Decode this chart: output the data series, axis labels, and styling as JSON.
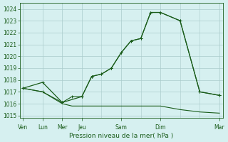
{
  "background_color": "#d6f0f0",
  "grid_color": "#aacccc",
  "line_color": "#1a5c1a",
  "xlabel": "Pression niveau de la mer( hPa )",
  "ylim": [
    1014.8,
    1024.5
  ],
  "yticks": [
    1015,
    1016,
    1017,
    1018,
    1019,
    1020,
    1021,
    1022,
    1023,
    1024
  ],
  "series1_x": [
    0,
    12,
    24,
    36,
    42,
    48,
    54,
    60,
    66,
    72,
    78,
    84,
    96,
    108,
    120
  ],
  "series1_y": [
    1017.3,
    1017.8,
    1016.1,
    1016.6,
    1018.3,
    1018.5,
    1019.0,
    1020.3,
    1021.3,
    1021.5,
    1023.7,
    1023.7,
    1023.0,
    1017.0,
    1016.7
  ],
  "series2_x": [
    0,
    12,
    24,
    30,
    36,
    42,
    48,
    54,
    60,
    66,
    72,
    78,
    84,
    96,
    108,
    120
  ],
  "series2_y": [
    1017.3,
    1017.0,
    1016.1,
    1016.6,
    1016.6,
    1018.3,
    1018.5,
    1019.0,
    1020.3,
    1021.3,
    1021.5,
    1023.7,
    1023.7,
    1023.0,
    1017.0,
    1016.7
  ],
  "series3_x": [
    0,
    12,
    24,
    30,
    36,
    42,
    48,
    54,
    60,
    66,
    72,
    78,
    84,
    96,
    108,
    120
  ],
  "series3_y": [
    1017.3,
    1017.0,
    1016.0,
    1015.8,
    1015.8,
    1015.8,
    1015.8,
    1015.8,
    1015.8,
    1015.8,
    1015.8,
    1015.8,
    1015.8,
    1015.5,
    1015.3,
    1015.2
  ],
  "xtick_positions": [
    0,
    12,
    24,
    36,
    60,
    84,
    120
  ],
  "xtick_labels": [
    "Ven",
    "Lun",
    "Mer",
    "Jeu",
    "Sam",
    "Dim",
    "Mar"
  ]
}
